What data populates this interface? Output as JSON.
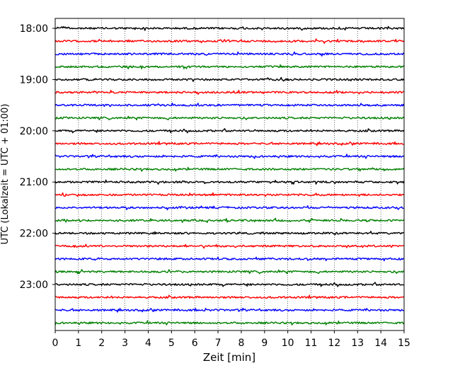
{
  "chart_data": {
    "type": "line",
    "title": "",
    "xlabel": "Zeit  [min]",
    "ylabel": "UTC (Lokalzeit = UTC + 01:00)",
    "xlim": [
      0,
      15
    ],
    "xticks": [
      0,
      1,
      2,
      3,
      4,
      5,
      6,
      7,
      8,
      9,
      10,
      11,
      12,
      13,
      14,
      15
    ],
    "yticks": [
      "18:00",
      "19:00",
      "20:00",
      "21:00",
      "22:00",
      "23:00"
    ],
    "grid": "x-dotted",
    "trace_interval_minutes": 15,
    "trace_count": 24,
    "trace_start": "18:00",
    "trace_colors": [
      "#000000",
      "#ff0000",
      "#0000ff",
      "#008000"
    ]
  }
}
